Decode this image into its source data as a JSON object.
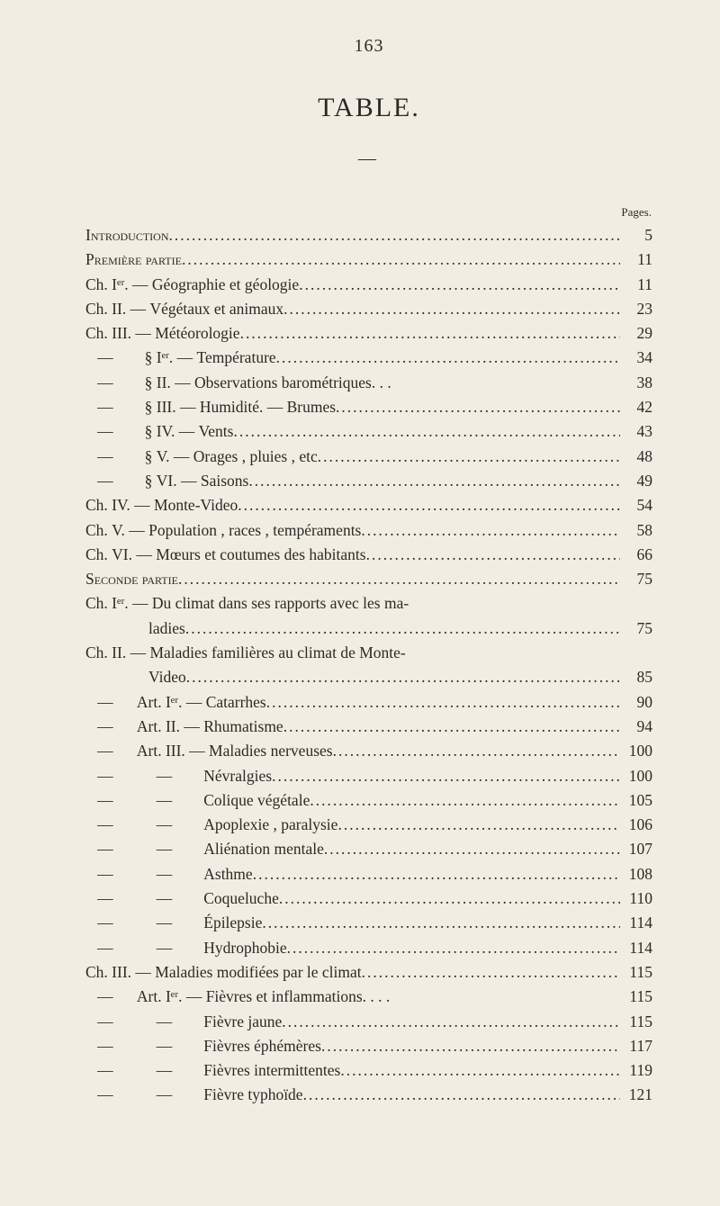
{
  "page_number_top": "163",
  "title": "TABLE.",
  "divider": "—",
  "pages_header": "Pages.",
  "font": {
    "family": "Times New Roman",
    "body_size_pt": 13,
    "title_size_pt": 22
  },
  "colors": {
    "background": "#f2ede3",
    "text": "#2a2a25"
  },
  "entries": [
    {
      "label": "Introduction",
      "page": "5",
      "smallcaps": true
    },
    {
      "label": "Première partie",
      "page": "11",
      "smallcaps": true
    },
    {
      "label": "Ch. Iᵉʳ. — Géographie et géologie",
      "page": "11"
    },
    {
      "label": "Ch. II. — Végétaux et animaux",
      "page": "23"
    },
    {
      "label": "Ch. III. — Météorologie",
      "page": "29"
    },
    {
      "label": "   —        § Iᵉʳ. — Température",
      "page": "34"
    },
    {
      "label": "   —        § II. — Observations barométriques. . .",
      "page": "38",
      "nodots": true
    },
    {
      "label": "   —        § III. — Humidité. — Brumes",
      "page": "42"
    },
    {
      "label": "   —        § IV. — Vents",
      "page": "43"
    },
    {
      "label": "   —        § V. — Orages , pluies , etc",
      "page": "48"
    },
    {
      "label": "   —        § VI. — Saisons",
      "page": "49"
    },
    {
      "label": "Ch. IV. — Monte-Video",
      "page": "54"
    },
    {
      "label": "Ch. V. — Population , races , tempéraments",
      "page": "58"
    },
    {
      "label": "Ch. VI. — Mœurs et coutumes des habitants",
      "page": "66"
    },
    {
      "label": "Seconde partie",
      "page": "75",
      "smallcaps": true
    },
    {
      "label": "Ch. Iᵉʳ. — Du climat dans ses rapports avec les ma-",
      "page": "",
      "nodots": true
    },
    {
      "label": "                ladies",
      "page": "75"
    },
    {
      "label": "Ch. II. — Maladies familières au climat de Monte-",
      "page": "",
      "nodots": true
    },
    {
      "label": "                Video",
      "page": "85"
    },
    {
      "label": "   —      Art. Iᵉʳ. — Catarrhes",
      "page": "90"
    },
    {
      "label": "   —      Art. II. — Rhumatisme",
      "page": "94"
    },
    {
      "label": "   —      Art. III. — Maladies nerveuses",
      "page": "100"
    },
    {
      "label": "   —           —        Névralgies",
      "page": "100"
    },
    {
      "label": "   —           —        Colique végétale",
      "page": "105"
    },
    {
      "label": "   —           —        Apoplexie , paralysie",
      "page": "106"
    },
    {
      "label": "   —           —        Aliénation mentale",
      "page": "107"
    },
    {
      "label": "   —           —        Asthme",
      "page": "108"
    },
    {
      "label": "   —           —        Coqueluche",
      "page": "110"
    },
    {
      "label": "   —           —        Épilepsie",
      "page": "114"
    },
    {
      "label": "   —           —        Hydrophobie",
      "page": "114"
    },
    {
      "label": "Ch. III. — Maladies modifiées par le climat",
      "page": "115"
    },
    {
      "label": "   —      Art. Iᵉʳ. — Fièvres et inflammations. . . .",
      "page": "115",
      "nodots": true
    },
    {
      "label": "   —           —        Fièvre jaune",
      "page": "115"
    },
    {
      "label": "   —           —        Fièvres éphémères",
      "page": "117"
    },
    {
      "label": "   —           —        Fièvres intermittentes",
      "page": "119"
    },
    {
      "label": "   —           —        Fièvre typhoïde",
      "page": "121"
    }
  ]
}
